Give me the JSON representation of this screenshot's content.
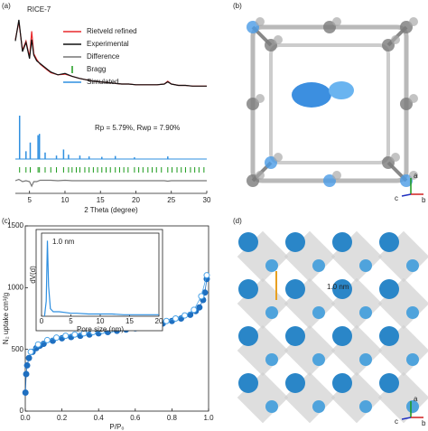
{
  "panels": {
    "a": "(a)",
    "b": "(b)",
    "c": "(c)",
    "d": "(d)"
  },
  "structure_b": {
    "axes": [
      "a",
      "b",
      "c"
    ]
  },
  "structure_d": {
    "label": "1.0 nm",
    "axes": [
      "a",
      "b",
      "c"
    ]
  },
  "chart_data": [
    {
      "type": "line",
      "title": "RICE-7",
      "xlabel": "2 Theta (degree)",
      "annotation": "Rp = 5.79%, Rwp = 7.90%",
      "xlim": [
        3,
        30
      ],
      "xticks": [
        5,
        10,
        15,
        20,
        25,
        30
      ],
      "ylim": [
        0,
        100
      ],
      "series": [
        {
          "name": "Rietveld refined",
          "color": "#e8282b",
          "x": [
            3,
            3.5,
            4,
            4.5,
            5,
            5.3,
            5.6,
            6,
            6.5,
            7,
            7.5,
            8,
            9,
            10,
            11,
            12,
            13,
            14,
            15,
            16,
            17,
            18,
            19,
            20,
            21,
            22,
            23,
            24,
            24.5,
            25,
            26,
            27,
            28,
            29,
            30
          ],
          "values": [
            72,
            97,
            57,
            70,
            47,
            84,
            52,
            44,
            37,
            33,
            29,
            25,
            22,
            23,
            20,
            17,
            15,
            13,
            12,
            11,
            10,
            9,
            9,
            8,
            8,
            8,
            8,
            9,
            13,
            9,
            7,
            7,
            6,
            6,
            6
          ]
        },
        {
          "name": "Experimental",
          "color": "#111111",
          "x": [
            3,
            3.5,
            4,
            4.5,
            5,
            5.3,
            5.6,
            6,
            6.5,
            7,
            7.5,
            8,
            9,
            10,
            11,
            12,
            13,
            14,
            15,
            16,
            17,
            18,
            19,
            20,
            21,
            22,
            23,
            24,
            24.5,
            25,
            26,
            27,
            28,
            29,
            30
          ],
          "values": [
            70,
            100,
            55,
            68,
            45,
            72,
            50,
            42,
            38,
            34,
            30,
            26,
            22,
            24,
            20,
            17,
            15,
            13,
            12,
            11,
            10,
            9,
            9,
            8,
            8,
            8,
            8,
            9,
            12,
            9,
            7,
            7,
            6,
            6,
            6
          ]
        },
        {
          "name": "Difference",
          "color": "#777777",
          "x": [
            3,
            3.5,
            4,
            4.5,
            5,
            5.3,
            5.6,
            6,
            6.5,
            7,
            7.5,
            8,
            9,
            10,
            11,
            12,
            13,
            14,
            15,
            16,
            17,
            18,
            19,
            20,
            21,
            22,
            23,
            24,
            24.5,
            25,
            26,
            27,
            28,
            29,
            30
          ],
          "values": [
            0,
            3,
            -2,
            0,
            -2,
            -12,
            -2,
            -2,
            1,
            1,
            1,
            1,
            0,
            1,
            0,
            0,
            0,
            0,
            0,
            0,
            0,
            0,
            0,
            0,
            0,
            0,
            0,
            0,
            -1,
            0,
            0,
            0,
            0,
            0,
            0
          ]
        },
        {
          "name": "Bragg",
          "color": "#1a9a1a",
          "x": [
            3.6,
            4.5,
            5.1,
            6.2,
            6.4,
            7.2,
            8.0,
            8.8,
            9.8,
            10.5,
            11.0,
            11.6,
            12.1,
            12.8,
            13.4,
            14.0,
            14.6,
            15.2,
            15.8,
            16.4,
            17.1,
            17.7,
            18.3,
            18.9,
            19.8,
            20.4,
            21.0,
            21.7,
            22.3,
            22.9,
            23.6,
            24.5,
            25.1,
            25.8,
            26.4,
            27.0,
            27.7,
            28.3,
            28.9,
            29.6
          ]
        },
        {
          "name": "Simulated",
          "color": "#2e8fe0",
          "x": [
            3.6,
            4.5,
            5.1,
            6.2,
            6.4,
            7.2,
            8.8,
            9.8,
            10.5,
            12.1,
            13.4,
            15.2,
            17.1,
            19.8,
            24.5
          ],
          "values": [
            100,
            18,
            38,
            55,
            58,
            15,
            8,
            22,
            10,
            8,
            6,
            5,
            7,
            4,
            6
          ]
        }
      ]
    },
    {
      "type": "scatter",
      "xlabel": "P/P₀",
      "ylabel": "N₂ uptake cm³/g",
      "xlim": [
        0,
        1
      ],
      "ylim": [
        0,
        1500
      ],
      "xticks": [
        {
          "value": 0,
          "label": "0.0"
        },
        0.2,
        0.4,
        0.6,
        0.8,
        {
          "value": 1,
          "label": "1.0"
        }
      ],
      "yticks": [
        0,
        500,
        1000,
        1500
      ],
      "series": [
        {
          "color": "#1f6fc0",
          "filled": true,
          "x": [
            0.001,
            0.005,
            0.01,
            0.02,
            0.04,
            0.06,
            0.08,
            0.1,
            0.15,
            0.2,
            0.25,
            0.3,
            0.35,
            0.4,
            0.45,
            0.5,
            0.55,
            0.6,
            0.65,
            0.7,
            0.75,
            0.8,
            0.85,
            0.9,
            0.93,
            0.95,
            0.97,
            0.98,
            0.99
          ],
          "values": [
            150,
            300,
            370,
            430,
            480,
            510,
            530,
            545,
            570,
            590,
            600,
            610,
            620,
            630,
            640,
            650,
            660,
            670,
            680,
            695,
            710,
            730,
            750,
            780,
            810,
            840,
            900,
            960,
            1070
          ]
        },
        {
          "color": "#4aa3e8",
          "filled": false,
          "x": [
            0.03,
            0.07,
            0.12,
            0.17,
            0.22,
            0.27,
            0.32,
            0.37,
            0.42,
            0.47,
            0.52,
            0.57,
            0.62,
            0.67,
            0.72,
            0.77,
            0.82,
            0.87,
            0.92,
            0.96,
            0.99
          ],
          "values": [
            480,
            540,
            575,
            595,
            610,
            620,
            630,
            640,
            650,
            660,
            670,
            680,
            690,
            700,
            715,
            730,
            750,
            775,
            820,
            930,
            1100
          ]
        }
      ]
    },
    {
      "type": "line",
      "xlabel": "Pore size (nm)",
      "ylabel": "dV(d)",
      "annotation": "1.0 nm",
      "xlim": [
        0,
        20
      ],
      "xticks": [
        0,
        5,
        10,
        15,
        20
      ],
      "ylim": [
        0,
        110
      ],
      "series": [
        {
          "color": "#2e8fe0",
          "x": [
            0.5,
            0.8,
            1.0,
            1.2,
            1.5,
            2,
            3,
            4,
            5,
            6,
            8,
            10,
            12,
            14,
            16,
            18,
            20
          ],
          "values": [
            0,
            20,
            100,
            40,
            10,
            6,
            6,
            5,
            4,
            4,
            3,
            3,
            3,
            2,
            2,
            2,
            2
          ]
        }
      ]
    }
  ]
}
